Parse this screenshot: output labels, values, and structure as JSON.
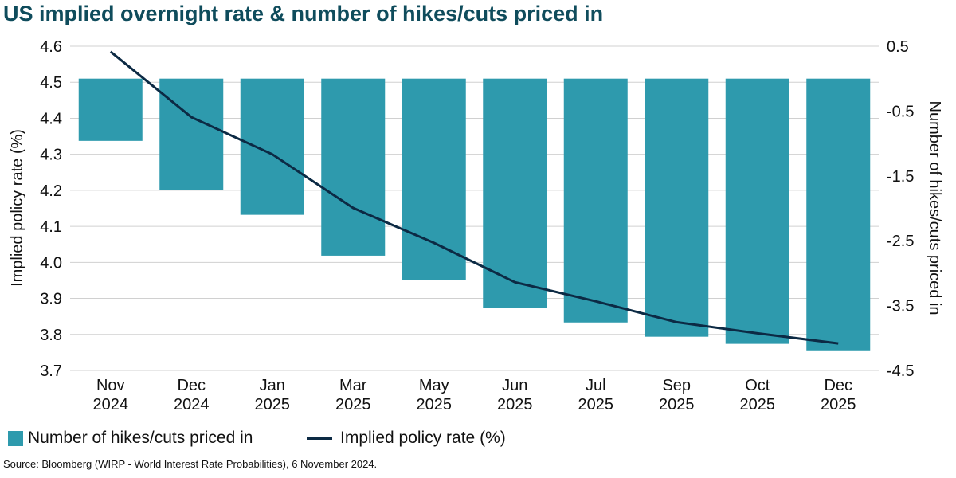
{
  "title": "US implied overnight rate & number of hikes/cuts priced in",
  "source": "Source: Bloomberg (WIRP - World Interest Rate Probabilities), 6 November 2024.",
  "colors": {
    "bar": "#2e9aad",
    "line": "#0c2a44",
    "title": "#0f4c5c",
    "grid": "#d0d0d0"
  },
  "chart_data": {
    "type": "bar+line",
    "title": "US implied overnight rate & number of hikes/cuts priced in",
    "categories": [
      [
        "Nov",
        "2024"
      ],
      [
        "Dec",
        "2024"
      ],
      [
        "Jan",
        "2025"
      ],
      [
        "Mar",
        "2025"
      ],
      [
        "May",
        "2025"
      ],
      [
        "Jun",
        "2025"
      ],
      [
        "Jul",
        "2025"
      ],
      [
        "Sep",
        "2025"
      ],
      [
        "Oct",
        "2025"
      ],
      [
        "Dec",
        "2025"
      ]
    ],
    "ylabel_left": "Implied policy rate (%)",
    "ylabel_right": "Number of hikes/cuts priced in",
    "ylim_left": [
      3.7,
      4.6
    ],
    "yticks_left": [
      "3.7",
      "3.8",
      "3.9",
      "4.0",
      "4.1",
      "4.2",
      "4.3",
      "4.4",
      "4.5",
      "4.6"
    ],
    "ylim_right": [
      -4.5,
      0.5
    ],
    "yticks_right": [
      "0.5",
      "-0.5",
      "-1.5",
      "-2.5",
      "-3.5",
      "-4.5"
    ],
    "grid": true,
    "legend_position": "bottom-left",
    "series": [
      {
        "name": "Number of hikes/cuts priced in",
        "type": "bar",
        "axis": "right",
        "values": [
          -0.96,
          -1.72,
          -2.1,
          -2.73,
          -3.11,
          -3.54,
          -3.76,
          -3.98,
          -4.09,
          -4.19
        ]
      },
      {
        "name": "Implied policy rate (%)",
        "type": "line",
        "axis": "left",
        "values": [
          4.585,
          4.403,
          4.3,
          4.151,
          4.054,
          3.945,
          3.892,
          3.834,
          3.803,
          3.775
        ]
      }
    ]
  }
}
